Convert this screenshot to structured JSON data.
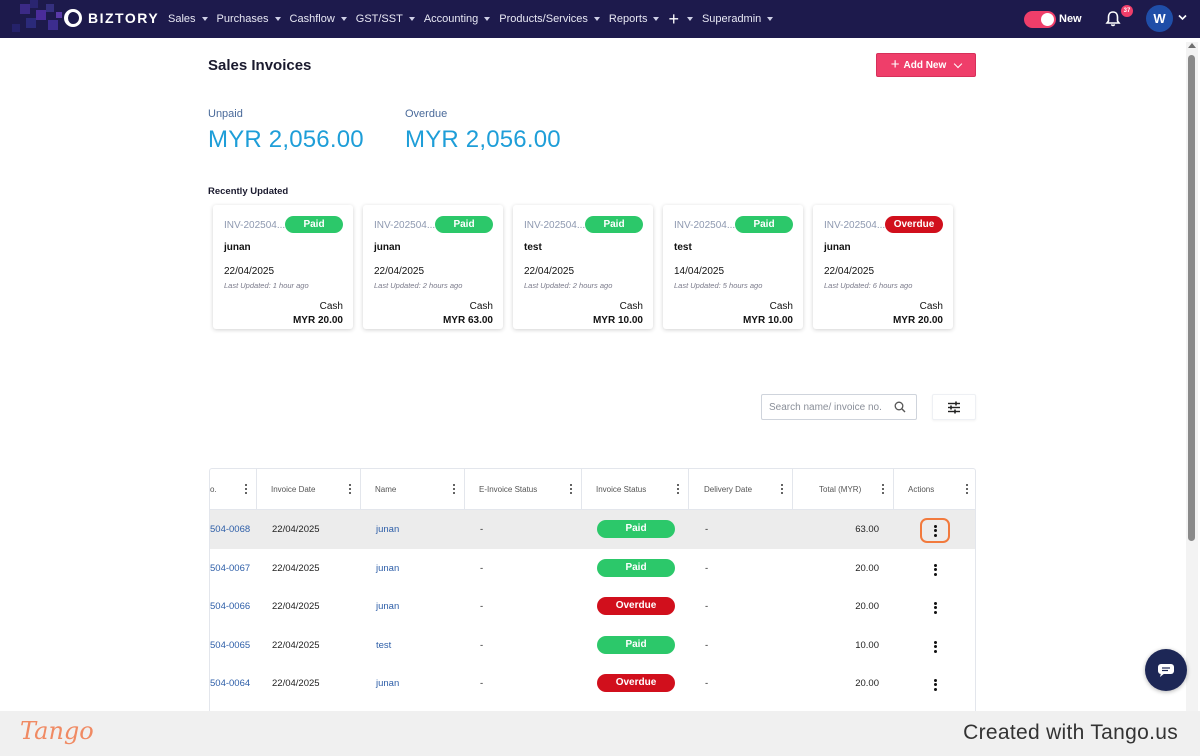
{
  "app": {
    "brand": "BIZTORY"
  },
  "nav": {
    "items": [
      {
        "label": "Sales"
      },
      {
        "label": "Purchases"
      },
      {
        "label": "Cashflow"
      },
      {
        "label": "GST/SST"
      },
      {
        "label": "Accounting"
      },
      {
        "label": "Products/Services"
      },
      {
        "label": "Reports"
      }
    ],
    "plus": "+",
    "admin": "Superadmin",
    "new_toggle_label": "New",
    "notification_count": "37",
    "avatar_initial": "W"
  },
  "page": {
    "title": "Sales Invoices",
    "add_new_label": "Add New"
  },
  "summary": {
    "unpaid_label": "Unpaid",
    "unpaid_amount": "MYR 2,056.00",
    "overdue_label": "Overdue",
    "overdue_amount": "MYR 2,056.00"
  },
  "recent": {
    "label": "Recently Updated",
    "cards": [
      {
        "invoice": "INV-202504...",
        "status": "Paid",
        "name": "junan",
        "date": "22/04/2025",
        "updated": "Last Updated: 1 hour ago",
        "method": "Cash",
        "amount": "MYR 20.00"
      },
      {
        "invoice": "INV-202504...",
        "status": "Paid",
        "name": "junan",
        "date": "22/04/2025",
        "updated": "Last Updated: 2 hours ago",
        "method": "Cash",
        "amount": "MYR 63.00"
      },
      {
        "invoice": "INV-202504...",
        "status": "Paid",
        "name": "test",
        "date": "22/04/2025",
        "updated": "Last Updated: 2 hours ago",
        "method": "Cash",
        "amount": "MYR 10.00"
      },
      {
        "invoice": "INV-202504...",
        "status": "Paid",
        "name": "test",
        "date": "14/04/2025",
        "updated": "Last Updated: 5 hours ago",
        "method": "Cash",
        "amount": "MYR 10.00"
      },
      {
        "invoice": "INV-202504...",
        "status": "Overdue",
        "name": "junan",
        "date": "22/04/2025",
        "updated": "Last Updated: 6 hours ago",
        "method": "Cash",
        "amount": "MYR 20.00"
      }
    ]
  },
  "search": {
    "placeholder": "Search name/ invoice no."
  },
  "table": {
    "columns": [
      "o.",
      "Invoice Date",
      "Name",
      "E-Invoice Status",
      "Invoice Status",
      "Delivery Date",
      "Total (MYR)",
      "Actions"
    ],
    "rows": [
      {
        "no": "504-0068",
        "date": "22/04/2025",
        "name": "junan",
        "einvoice": "-",
        "status": "Paid",
        "delivery": "-",
        "total": "63.00"
      },
      {
        "no": "504-0067",
        "date": "22/04/2025",
        "name": "junan",
        "einvoice": "-",
        "status": "Paid",
        "delivery": "-",
        "total": "20.00"
      },
      {
        "no": "504-0066",
        "date": "22/04/2025",
        "name": "junan",
        "einvoice": "-",
        "status": "Overdue",
        "delivery": "-",
        "total": "20.00"
      },
      {
        "no": "504-0065",
        "date": "22/04/2025",
        "name": "test",
        "einvoice": "-",
        "status": "Paid",
        "delivery": "-",
        "total": "10.00"
      },
      {
        "no": "504-0064",
        "date": "22/04/2025",
        "name": "junan",
        "einvoice": "-",
        "status": "Overdue",
        "delivery": "-",
        "total": "20.00"
      }
    ]
  },
  "footer": {
    "logo_text": "Tango",
    "created_with": "Created with Tango.us"
  },
  "colors": {
    "navbar": "#1d1a4c",
    "accent": "#ef3e6a",
    "amount_blue": "#1e9ed8",
    "paid": "#2cc86a",
    "overdue": "#d10f1c",
    "focus_ring": "#f27a3d"
  },
  "icons": [
    "biztory-logo-icon",
    "bell-icon",
    "search-icon",
    "filter-sliders-icon",
    "more-vert-icon",
    "chat-icon",
    "plus-icon",
    "chevron-down-icon"
  ]
}
